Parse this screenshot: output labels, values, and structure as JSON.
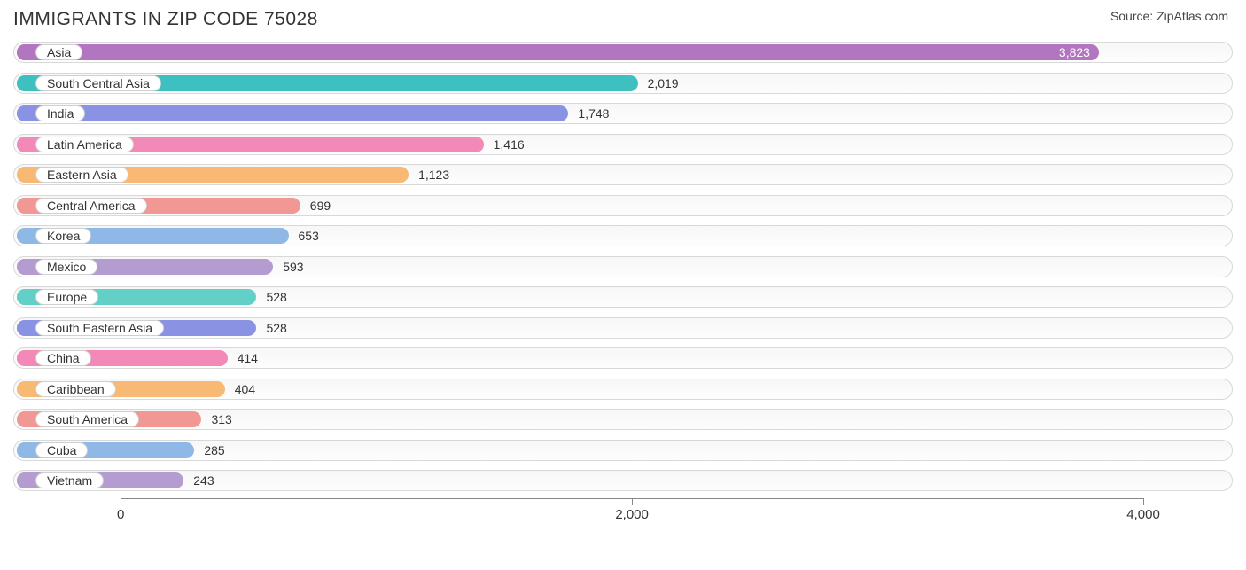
{
  "header": {
    "title": "IMMIGRANTS IN ZIP CODE 75028",
    "source": "Source: ZipAtlas.com"
  },
  "chart": {
    "type": "bar-horizontal",
    "background_color": "#ffffff",
    "track_bg": "#f8f8f8",
    "track_border": "#d8d8d8",
    "pill_bg": "#ffffff",
    "pill_border": "#d0d0d0",
    "label_fontsize": 14,
    "title_fontsize": 21,
    "xmin": -420,
    "xmax": 4350,
    "ticks": [
      0,
      2000,
      4000
    ],
    "tick_labels": [
      "0",
      "2,000",
      "4,000"
    ],
    "max_bar_value": 3823,
    "colors": [
      "#b176bf",
      "#3fc0c0",
      "#8a92e3",
      "#f289b7",
      "#f7b974",
      "#f19895",
      "#8fb8e6",
      "#b49cd0",
      "#63d0c7",
      "#8a92e3",
      "#f289b7",
      "#f7b974",
      "#f19895",
      "#8fb8e6",
      "#b49cd0"
    ],
    "rows": [
      {
        "label": "Asia",
        "value": 3823,
        "value_text": "3,823",
        "value_inside": true
      },
      {
        "label": "South Central Asia",
        "value": 2019,
        "value_text": "2,019",
        "value_inside": false
      },
      {
        "label": "India",
        "value": 1748,
        "value_text": "1,748",
        "value_inside": false
      },
      {
        "label": "Latin America",
        "value": 1416,
        "value_text": "1,416",
        "value_inside": false
      },
      {
        "label": "Eastern Asia",
        "value": 1123,
        "value_text": "1,123",
        "value_inside": false
      },
      {
        "label": "Central America",
        "value": 699,
        "value_text": "699",
        "value_inside": false
      },
      {
        "label": "Korea",
        "value": 653,
        "value_text": "653",
        "value_inside": false
      },
      {
        "label": "Mexico",
        "value": 593,
        "value_text": "593",
        "value_inside": false
      },
      {
        "label": "Europe",
        "value": 528,
        "value_text": "528",
        "value_inside": false
      },
      {
        "label": "South Eastern Asia",
        "value": 528,
        "value_text": "528",
        "value_inside": false
      },
      {
        "label": "China",
        "value": 414,
        "value_text": "414",
        "value_inside": false
      },
      {
        "label": "Caribbean",
        "value": 404,
        "value_text": "404",
        "value_inside": false
      },
      {
        "label": "South America",
        "value": 313,
        "value_text": "313",
        "value_inside": false
      },
      {
        "label": "Cuba",
        "value": 285,
        "value_text": "285",
        "value_inside": false
      },
      {
        "label": "Vietnam",
        "value": 243,
        "value_text": "243",
        "value_inside": false
      }
    ]
  }
}
